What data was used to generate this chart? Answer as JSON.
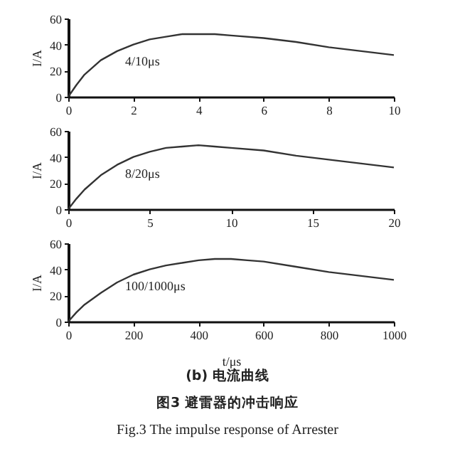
{
  "chart_data": [
    {
      "type": "line",
      "ylabel": "I/A",
      "x": [
        0,
        0.25,
        0.5,
        1,
        1.5,
        2,
        2.5,
        3,
        3.5,
        4,
        4.5,
        5,
        6,
        7,
        8,
        9,
        10
      ],
      "series": [
        {
          "color": "#333333",
          "values": [
            0,
            9,
            17,
            28,
            35,
            40,
            44,
            46,
            48,
            48,
            48,
            47,
            45,
            42,
            38,
            35,
            32
          ]
        }
      ],
      "xlim": [
        0,
        10
      ],
      "xticks": [
        0,
        2,
        4,
        6,
        8,
        10
      ],
      "ylim": [
        0,
        60
      ],
      "yticks": [
        0,
        20,
        40,
        60
      ],
      "grid": false,
      "annotations": [
        "4/10μs"
      ]
    },
    {
      "type": "line",
      "ylabel": "I/A",
      "x": [
        0,
        0.5,
        1,
        2,
        3,
        4,
        5,
        6,
        7,
        8,
        9,
        10,
        12,
        14,
        16,
        18,
        20
      ],
      "series": [
        {
          "color": "#333333",
          "values": [
            0,
            8,
            15,
            26,
            34,
            40,
            44,
            47,
            48,
            49,
            48,
            47,
            45,
            41,
            38,
            35,
            32
          ]
        }
      ],
      "xlim": [
        0,
        20
      ],
      "xticks": [
        0,
        5,
        10,
        15,
        20
      ],
      "ylim": [
        0,
        60
      ],
      "yticks": [
        0,
        20,
        40,
        60
      ],
      "grid": false,
      "annotations": [
        "8/20μs"
      ]
    },
    {
      "type": "line",
      "ylabel": "I/A",
      "xlabel": "t/μs",
      "x": [
        0,
        25,
        50,
        100,
        150,
        200,
        250,
        300,
        350,
        400,
        450,
        500,
        550,
        600,
        700,
        800,
        900,
        1000
      ],
      "series": [
        {
          "color": "#333333",
          "values": [
            0,
            7,
            13,
            22,
            30,
            36,
            40,
            43,
            45,
            47,
            48,
            48,
            47,
            46,
            42,
            38,
            35,
            32
          ]
        }
      ],
      "xlim": [
        0,
        1000
      ],
      "xticks": [
        0,
        200,
        400,
        600,
        800,
        1000
      ],
      "ylim": [
        0,
        60
      ],
      "yticks": [
        0,
        20,
        40,
        60
      ],
      "grid": false,
      "annotations": [
        "100/1000μs"
      ]
    },
    {
      "type": "other",
      "annotations": [
        "(b) 电流曲线",
        "图3 避雷器的冲击响应",
        "Fig.3 The impulse response of Arrester"
      ]
    }
  ]
}
